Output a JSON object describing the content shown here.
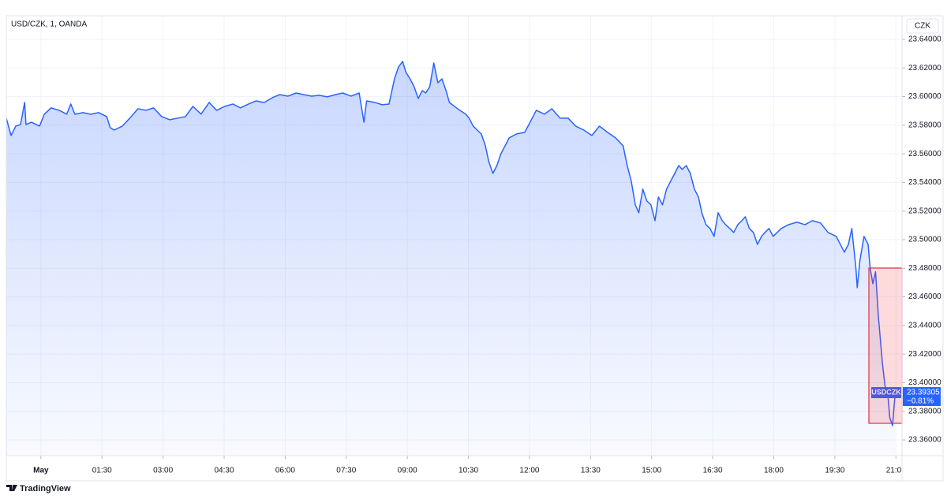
{
  "chart_data": {
    "type": "line",
    "title": "USD/CZK, 1, OANDA",
    "currency": "CZK",
    "brand": "TradingView",
    "x": [
      -51,
      -44,
      -37,
      -30,
      -24,
      -22,
      -14,
      -2,
      5,
      15,
      27,
      38,
      44,
      50,
      62,
      73,
      85,
      97,
      102,
      108,
      120,
      131,
      143,
      155,
      166,
      178,
      190,
      201,
      213,
      224,
      236,
      248,
      259,
      271,
      283,
      294,
      306,
      317,
      329,
      341,
      352,
      364,
      376,
      387,
      399,
      410,
      422,
      434,
      445,
      457,
      469,
      476,
      480,
      492,
      503,
      513,
      521,
      527,
      533,
      538,
      544,
      550,
      556,
      562,
      567,
      573,
      579,
      585,
      591,
      597,
      602,
      614,
      626,
      631,
      637,
      643,
      649,
      655,
      660,
      666,
      672,
      678,
      690,
      701,
      713,
      724,
      730,
      742,
      753,
      765,
      777,
      788,
      800,
      812,
      823,
      835,
      847,
      858,
      864,
      870,
      876,
      881,
      887,
      893,
      899,
      905,
      910,
      916,
      922,
      928,
      934,
      940,
      945,
      951,
      957,
      963,
      969,
      974,
      980,
      986,
      992,
      998,
      1004,
      1009,
      1015,
      1021,
      1027,
      1033,
      1038,
      1044,
      1050,
      1056,
      1062,
      1067,
      1073,
      1079,
      1085,
      1091,
      1102,
      1114,
      1126,
      1137,
      1149,
      1160,
      1172,
      1184,
      1190,
      1195,
      1201,
      1203,
      1207,
      1213,
      1219,
      1222,
      1226,
      1230,
      1234,
      1236,
      1240,
      1244,
      1248,
      1251,
      1255,
      1259
    ],
    "series": [
      {
        "name": "USDCZK",
        "color": "#2962ff",
        "values": [
          23.5849,
          23.5728,
          23.5794,
          23.5805,
          23.5959,
          23.5805,
          23.5821,
          23.5794,
          23.5877,
          23.5921,
          23.5904,
          23.5877,
          23.5948,
          23.5877,
          23.5888,
          23.5877,
          23.5888,
          23.586,
          23.5783,
          23.5766,
          23.5794,
          23.5849,
          23.5915,
          23.5904,
          23.5921,
          23.586,
          23.5838,
          23.5849,
          23.586,
          23.5932,
          23.5877,
          23.5959,
          23.5904,
          23.5932,
          23.5948,
          23.5921,
          23.5948,
          23.597,
          23.5959,
          23.5992,
          23.6014,
          23.6003,
          23.6025,
          23.6014,
          23.6003,
          23.6009,
          23.5998,
          23.6014,
          23.6025,
          23.6003,
          23.6025,
          23.5821,
          23.597,
          23.5959,
          23.5943,
          23.5948,
          23.6124,
          23.6207,
          23.6246,
          23.6169,
          23.6124,
          23.6069,
          23.5987,
          23.6042,
          23.6025,
          23.6069,
          23.6235,
          23.6097,
          23.6124,
          23.6042,
          23.5959,
          23.5915,
          23.5877,
          23.5849,
          23.5794,
          23.5766,
          23.5739,
          23.5656,
          23.5546,
          23.5463,
          23.5518,
          23.5601,
          23.5711,
          23.5739,
          23.575,
          23.5849,
          23.5904,
          23.5877,
          23.5915,
          23.5849,
          23.5849,
          23.5794,
          23.5766,
          23.5728,
          23.5794,
          23.575,
          23.5711,
          23.5656,
          23.5518,
          23.5408,
          23.5243,
          23.5188,
          23.5353,
          23.527,
          23.5243,
          23.5133,
          23.5298,
          23.5243,
          23.5353,
          23.5408,
          23.5463,
          23.5518,
          23.5491,
          23.5518,
          23.5463,
          23.5353,
          23.5298,
          23.5188,
          23.5105,
          23.5078,
          23.5023,
          23.5188,
          23.5133,
          23.5105,
          23.5078,
          23.505,
          23.5105,
          23.5133,
          23.516,
          23.5078,
          23.505,
          23.4967,
          23.5023,
          23.505,
          23.5078,
          23.5023,
          23.505,
          23.5078,
          23.5105,
          23.5122,
          23.5105,
          23.5133,
          23.5116,
          23.505,
          23.5023,
          23.4912,
          23.4967,
          23.5078,
          23.4802,
          23.4664,
          23.4857,
          23.5023,
          23.4967,
          23.4802,
          23.4692,
          23.4775,
          23.4472,
          23.4361,
          23.4141,
          23.3976,
          23.3921,
          23.3755,
          23.37,
          23.393
        ]
      }
    ],
    "last_price": {
      "symbol": "USDCZK",
      "value": 23.39305,
      "change": "−0.81%"
    },
    "xlim": [
      -51,
      1269
    ],
    "xticks": [
      {
        "value": 0,
        "label": "May"
      },
      {
        "value": 90,
        "label": "01:30"
      },
      {
        "value": 180,
        "label": "03:00"
      },
      {
        "value": 270,
        "label": "04:30"
      },
      {
        "value": 360,
        "label": "06:00"
      },
      {
        "value": 450,
        "label": "07:30"
      },
      {
        "value": 540,
        "label": "09:00"
      },
      {
        "value": 630,
        "label": "10:30"
      },
      {
        "value": 720,
        "label": "12:00"
      },
      {
        "value": 810,
        "label": "13:30"
      },
      {
        "value": 900,
        "label": "15:00"
      },
      {
        "value": 990,
        "label": "16:30"
      },
      {
        "value": 1080,
        "label": "18:00"
      },
      {
        "value": 1170,
        "label": "19:30"
      },
      {
        "value": 1260,
        "label": "21:00"
      }
    ],
    "ylim": [
      23.349,
      23.6565
    ],
    "yticks": [
      {
        "value": 23.36,
        "label": "23.36000"
      },
      {
        "value": 23.38,
        "label": "23.38000"
      },
      {
        "value": 23.4,
        "label": "23.40000"
      },
      {
        "value": 23.42,
        "label": "23.42000"
      },
      {
        "value": 23.44,
        "label": "23.44000"
      },
      {
        "value": 23.46,
        "label": "23.46000"
      },
      {
        "value": 23.48,
        "label": "23.48000"
      },
      {
        "value": 23.5,
        "label": "23.50000"
      },
      {
        "value": 23.52,
        "label": "23.52000"
      },
      {
        "value": 23.54,
        "label": "23.54000"
      },
      {
        "value": 23.56,
        "label": "23.56000"
      },
      {
        "value": 23.58,
        "label": "23.58000"
      },
      {
        "value": 23.6,
        "label": "23.60000"
      },
      {
        "value": 23.62,
        "label": "23.62000"
      },
      {
        "value": 23.64,
        "label": "23.64000"
      }
    ],
    "grid": true
  }
}
